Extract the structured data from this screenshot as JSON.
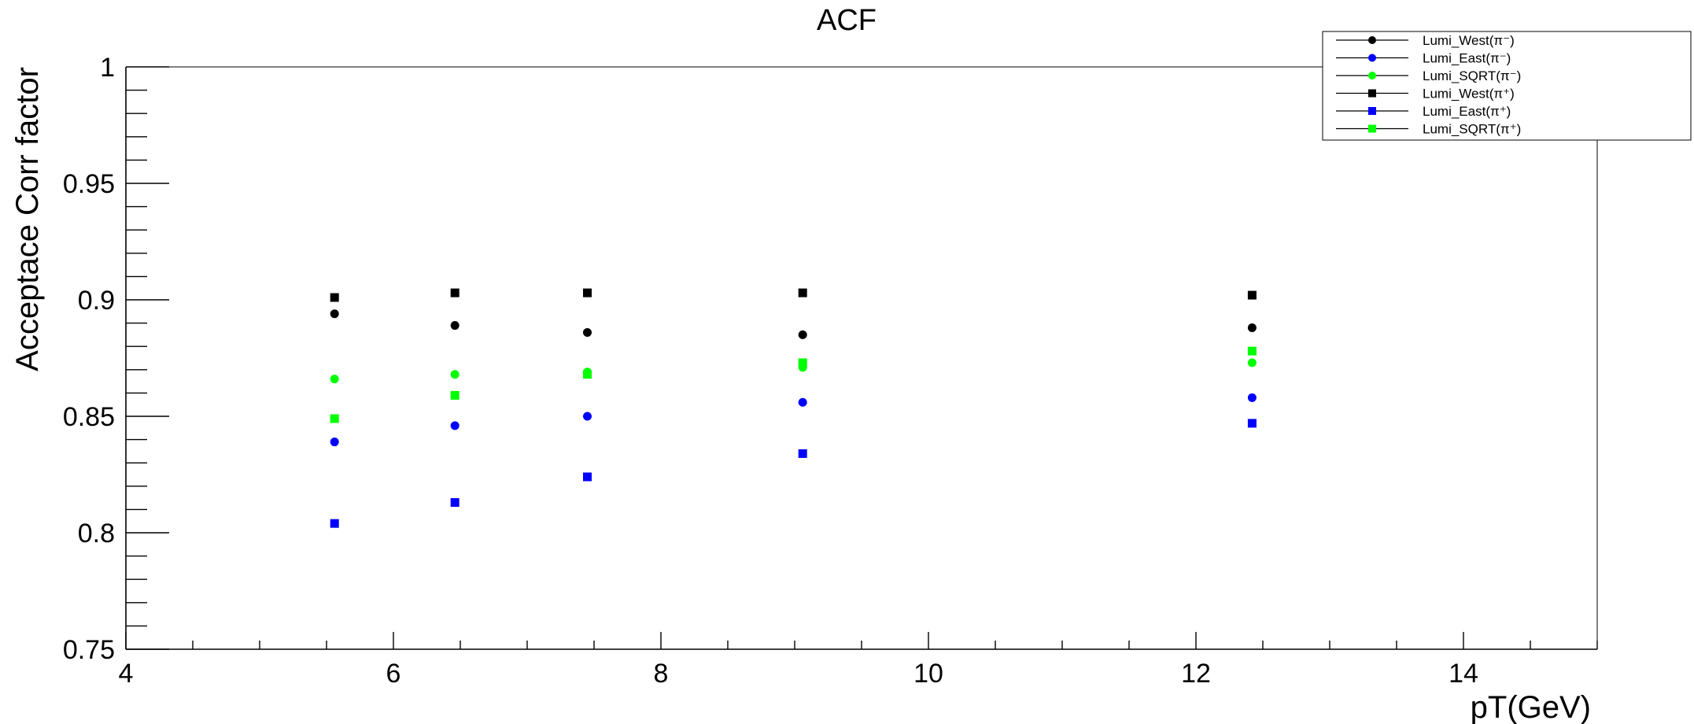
{
  "chart_data": {
    "type": "scatter",
    "title": "ACF",
    "xlabel": "pT(GeV)",
    "ylabel": "Acceptace Corr factor",
    "xlim": [
      4,
      15
    ],
    "ylim": [
      0.75,
      1.0
    ],
    "x_tick_labels": [
      "4",
      "6",
      "8",
      "10",
      "12",
      "14"
    ],
    "y_tick_labels": [
      "0.75",
      "0.8",
      "0.85",
      "0.9",
      "0.95",
      "1"
    ],
    "grid": false,
    "legend_position": "top-right",
    "x": [
      5.56,
      6.46,
      7.45,
      9.06,
      12.42
    ],
    "series": [
      {
        "name": "Lumi_West(π⁻)",
        "marker": "circle",
        "color": "#000000",
        "values": [
          0.894,
          0.889,
          0.886,
          0.885,
          0.888
        ]
      },
      {
        "name": "Lumi_East(π⁻)",
        "marker": "circle",
        "color": "#0000ff",
        "values": [
          0.839,
          0.846,
          0.85,
          0.856,
          0.858
        ]
      },
      {
        "name": "Lumi_SQRT(π⁻)",
        "marker": "circle",
        "color": "#00ff00",
        "values": [
          0.866,
          0.868,
          0.869,
          0.871,
          0.873
        ]
      },
      {
        "name": "Lumi_West(π⁺)",
        "marker": "square",
        "color": "#000000",
        "values": [
          0.901,
          0.903,
          0.903,
          0.903,
          0.902
        ]
      },
      {
        "name": "Lumi_East(π⁺)",
        "marker": "square",
        "color": "#0000ff",
        "values": [
          0.804,
          0.813,
          0.824,
          0.834,
          0.847
        ]
      },
      {
        "name": "Lumi_SQRT(π⁺)",
        "marker": "square",
        "color": "#00ff00",
        "values": [
          0.849,
          0.859,
          0.868,
          0.873,
          0.878
        ]
      }
    ]
  }
}
